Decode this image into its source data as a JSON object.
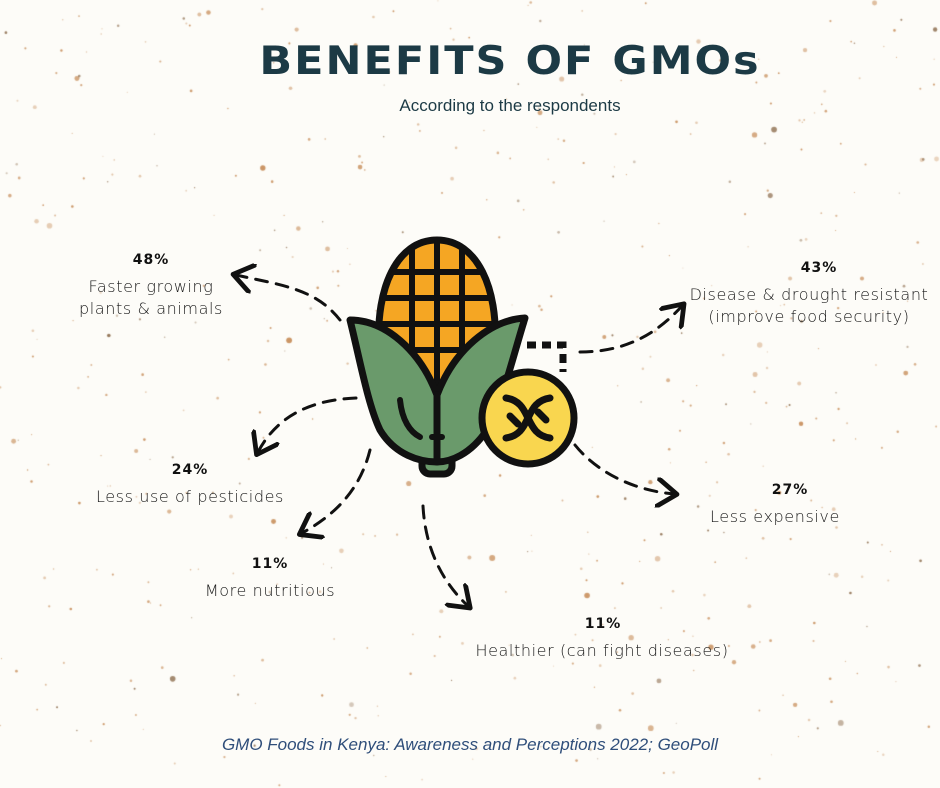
{
  "title": "BENEFITS OF GMOs",
  "subtitle": "According to the respondents",
  "benefits": [
    {
      "pct": "48%",
      "label": "Faster growing plants & animals",
      "line1": "Faster growing",
      "line2": "plants & animals",
      "value": 48
    },
    {
      "pct": "43%",
      "label": "Disease & drought resistant (improve food security)",
      "line1": "Disease & drought resistant",
      "line2": "(improve food security)",
      "value": 43
    },
    {
      "pct": "24%",
      "label": "Less use of pesticides",
      "line1": "Less use of pesticides",
      "value": 24
    },
    {
      "pct": "27%",
      "label": "Less expensive",
      "line1": "Less expensive",
      "value": 27
    },
    {
      "pct": "11%",
      "label": "More nutritious",
      "line1": "More nutritious",
      "value": 11
    },
    {
      "pct": "11%",
      "label": "Healthier (can fight diseases)",
      "line1": "Healthier (can fight diseases)",
      "value": 11
    }
  ],
  "source": "GMO Foods in Kenya: Awareness and Perceptions 2022; GeoPoll",
  "colors": {
    "title": "#1c3a45",
    "husk": "#6a9a6b",
    "kernel": "#f5a623",
    "badge": "#f9d64f",
    "outline": "#111111",
    "source": "#2f4e7a",
    "speckle": "#c58a55"
  },
  "icons": [
    "corn-icon",
    "dna-badge-icon"
  ]
}
